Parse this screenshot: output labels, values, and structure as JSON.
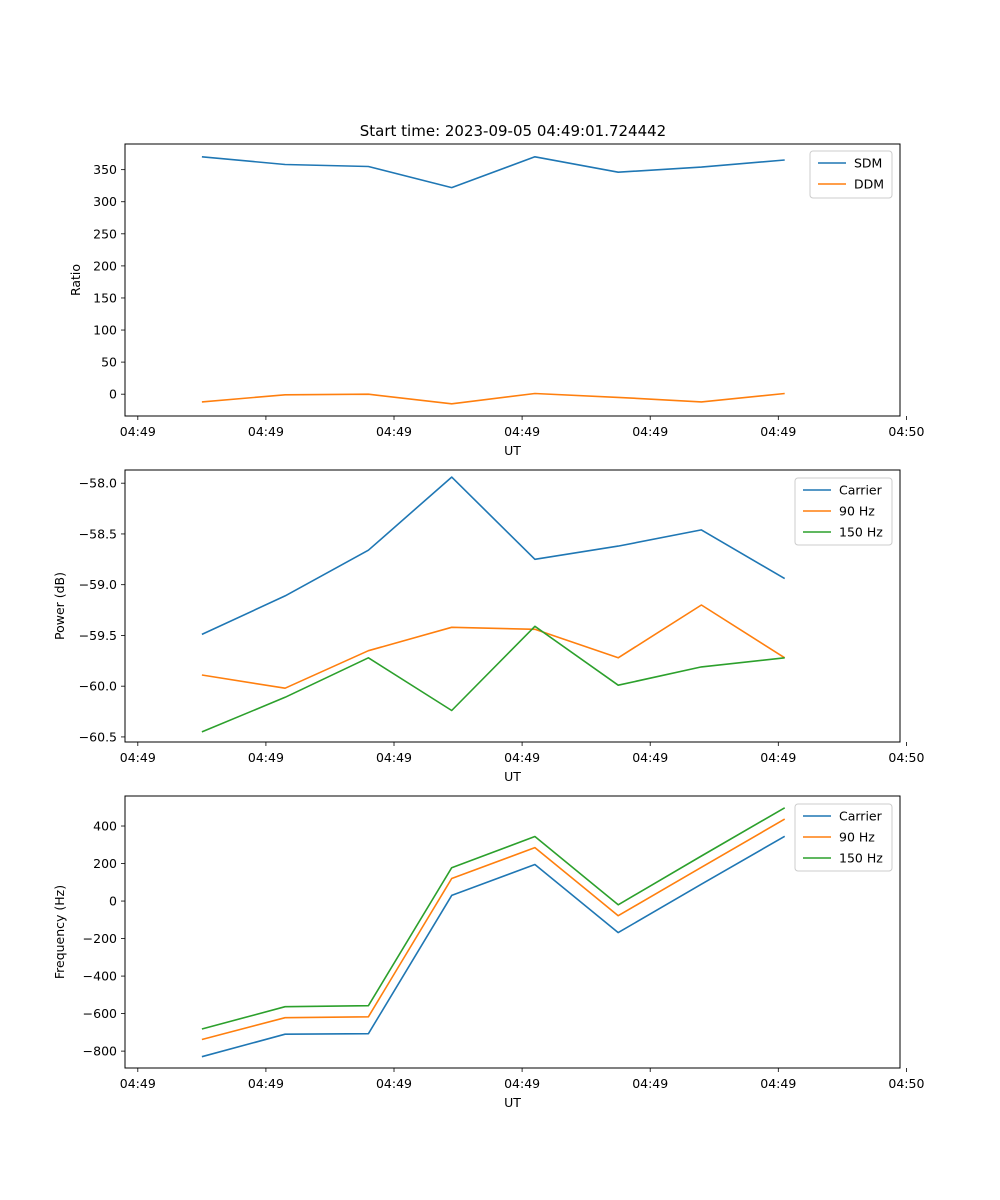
{
  "figure_title": "Start time: 2023-09-05 04:49:01.724442",
  "chart_data": [
    {
      "type": "line",
      "title": "Start time: 2023-09-05 04:49:01.724442",
      "xlabel": "UT",
      "ylabel": "Ratio",
      "legend_position": "top-right",
      "grid": false,
      "x": [
        0.5,
        1.15,
        1.8,
        2.45,
        3.1,
        3.75,
        4.4,
        5.05
      ],
      "xlim": [
        -0.1,
        5.95
      ],
      "x_ticks": [
        0,
        1,
        2,
        3,
        4,
        5,
        6
      ],
      "x_tick_labels": [
        "04:49",
        "04:49",
        "04:49",
        "04:49",
        "04:49",
        "04:49",
        "04:50"
      ],
      "ylim": [
        -34,
        390
      ],
      "y_ticks": [
        0,
        50,
        100,
        150,
        200,
        250,
        300,
        350
      ],
      "y_tick_labels": [
        "0",
        "50",
        "100",
        "150",
        "200",
        "250",
        "300",
        "350"
      ],
      "series": [
        {
          "name": "SDM",
          "color": "#1f77b4",
          "values": [
            370,
            358,
            355,
            322,
            370,
            346,
            354,
            365
          ]
        },
        {
          "name": "DDM",
          "color": "#ff7f0e",
          "values": [
            -12,
            -1,
            0,
            -15,
            1,
            -5,
            -12,
            1
          ]
        }
      ]
    },
    {
      "type": "line",
      "title": "",
      "xlabel": "UT",
      "ylabel": "Power (dB)",
      "legend_position": "top-right",
      "grid": false,
      "x": [
        0.5,
        1.15,
        1.8,
        2.45,
        3.1,
        3.75,
        4.4,
        5.05
      ],
      "xlim": [
        -0.1,
        5.95
      ],
      "x_ticks": [
        0,
        1,
        2,
        3,
        4,
        5,
        6
      ],
      "x_tick_labels": [
        "04:49",
        "04:49",
        "04:49",
        "04:49",
        "04:49",
        "04:49",
        "04:50"
      ],
      "ylim": [
        -60.55,
        -57.87
      ],
      "y_ticks": [
        -60.5,
        -60.0,
        -59.5,
        -59.0,
        -58.5,
        -58.0
      ],
      "y_tick_labels": [
        "−60.5",
        "−60.0",
        "−59.5",
        "−59.0",
        "−58.5",
        "−58.0"
      ],
      "series": [
        {
          "name": "Carrier",
          "color": "#1f77b4",
          "values": [
            -59.49,
            -59.11,
            -58.66,
            -57.94,
            -58.75,
            -58.62,
            -58.46,
            -58.94
          ]
        },
        {
          "name": "90 Hz",
          "color": "#ff7f0e",
          "values": [
            -59.89,
            -60.02,
            -59.65,
            -59.42,
            -59.44,
            -59.72,
            -59.2,
            -59.72
          ]
        },
        {
          "name": "150 Hz",
          "color": "#2ca02c",
          "values": [
            -60.45,
            -60.11,
            -59.72,
            -60.24,
            -59.41,
            -59.99,
            -59.81,
            -59.72
          ]
        }
      ]
    },
    {
      "type": "line",
      "title": "",
      "xlabel": "UT",
      "ylabel": "Frequency (Hz)",
      "legend_position": "top-right",
      "grid": false,
      "x": [
        0.5,
        1.15,
        1.8,
        2.45,
        3.1,
        3.75,
        4.4,
        5.05
      ],
      "xlim": [
        -0.1,
        5.95
      ],
      "x_ticks": [
        0,
        1,
        2,
        3,
        4,
        5,
        6
      ],
      "x_tick_labels": [
        "04:49",
        "04:49",
        "04:49",
        "04:49",
        "04:49",
        "04:49",
        "04:50"
      ],
      "ylim": [
        -890,
        560
      ],
      "y_ticks": [
        -800,
        -600,
        -400,
        -200,
        0,
        200,
        400
      ],
      "y_tick_labels": [
        "−800",
        "−600",
        "−400",
        "−200",
        "0",
        "200",
        "400"
      ],
      "series": [
        {
          "name": "Carrier",
          "color": "#1f77b4",
          "values": [
            -830,
            -710,
            -707,
            30,
            195,
            -168,
            90,
            345
          ]
        },
        {
          "name": "90 Hz",
          "color": "#ff7f0e",
          "values": [
            -738,
            -622,
            -617,
            120,
            285,
            -78,
            180,
            437
          ]
        },
        {
          "name": "150 Hz",
          "color": "#2ca02c",
          "values": [
            -682,
            -563,
            -558,
            178,
            344,
            -20,
            240,
            497
          ]
        }
      ]
    }
  ]
}
